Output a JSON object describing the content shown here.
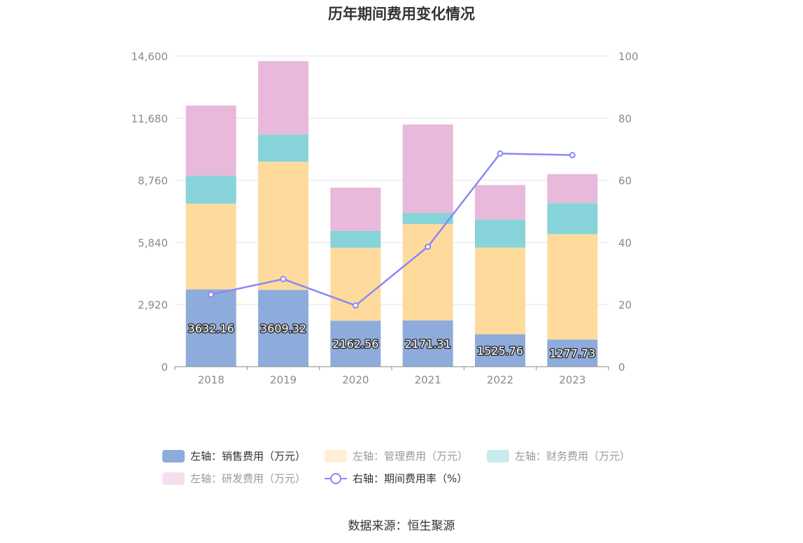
{
  "title": "历年期间费用变化情况",
  "source": "数据来源：恒生聚源",
  "legend": [
    {
      "label": "左轴：销售费用（万元）",
      "color": "#8eacdb",
      "kind": "swatch",
      "muted": false
    },
    {
      "label": "左轴：管理费用（万元）",
      "color": "#fedb9d",
      "kind": "swatch",
      "muted": true
    },
    {
      "label": "左轴：财务费用（万元）",
      "color": "#86d4d9",
      "kind": "swatch",
      "muted": true
    },
    {
      "label": "左轴：研发费用（万元）",
      "color": "#e8b9da",
      "kind": "swatch",
      "muted": true
    },
    {
      "label": "右轴：期间费用率（%）",
      "color": "#8a88f5",
      "kind": "line",
      "muted": false
    }
  ],
  "chart_data": {
    "type": "bar",
    "stacked": true,
    "categories": [
      "2018",
      "2019",
      "2020",
      "2021",
      "2022",
      "2023"
    ],
    "series": [
      {
        "name": "左轴：销售费用（万元）",
        "axis": "left",
        "color": "#8eacdb",
        "values": [
          3632.16,
          3609.32,
          2162.56,
          2171.31,
          1525.76,
          1277.73
        ],
        "labels": [
          "3632.16",
          "3609.32",
          "2162.56",
          "2171.31",
          "1525.76",
          "1277.73"
        ]
      },
      {
        "name": "左轴：管理费用（万元）",
        "axis": "left",
        "color": "#fedb9d",
        "values": [
          4030,
          6020,
          3430,
          4530,
          4070,
          4950
        ]
      },
      {
        "name": "左轴：财务费用（万元）",
        "axis": "left",
        "color": "#86d4d9",
        "values": [
          1310,
          1280,
          790,
          530,
          1320,
          1460
        ]
      },
      {
        "name": "左轴：研发费用（万元）",
        "axis": "left",
        "color": "#e8b9da",
        "values": [
          3300,
          3450,
          2030,
          4150,
          1620,
          1360
        ]
      },
      {
        "name": "右轴：期间费用率（%）",
        "axis": "right",
        "type": "line",
        "color": "#8a88f5",
        "values": [
          23.2,
          28.2,
          19.7,
          38.6,
          68.6,
          68.1
        ]
      }
    ],
    "left_axis": {
      "ylim": [
        0,
        14600
      ],
      "ticks": [
        "0",
        "2,920",
        "5,840",
        "8,760",
        "11,680",
        "14,600"
      ]
    },
    "right_axis": {
      "ylim": [
        0,
        100
      ],
      "ticks": [
        "0",
        "20",
        "40",
        "60",
        "80",
        "100"
      ]
    },
    "grid": true,
    "legend_position": "bottom"
  }
}
